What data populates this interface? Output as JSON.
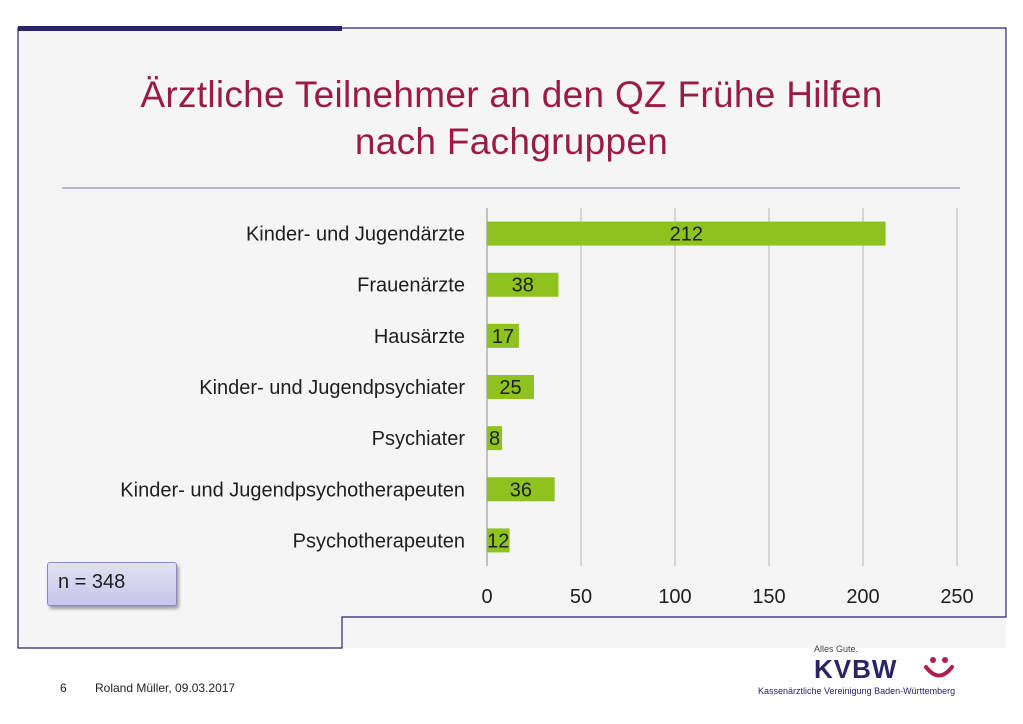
{
  "slide": {
    "title_lines": [
      "Ärztliche Teilnehmer an den QZ Frühe Hilfen",
      "nach Fachgruppen"
    ],
    "note": "n = 348",
    "page_number": "6",
    "footer": "Roland Müller, 09.03.2017",
    "logo": {
      "tagline": "Alles Gute.",
      "wordmark": "KVBW",
      "subtitle": "Kassenärztliche Vereinigung Baden-Württemberg"
    },
    "colors": {
      "title": "#9b1b45",
      "bar": "#8dc21f",
      "accent": "#2a2469"
    }
  },
  "chart_data": {
    "type": "bar",
    "orientation": "horizontal",
    "categories": [
      "Kinder- und Jugendärzte",
      "Frauenärzte",
      "Hausärzte",
      "Kinder- und Jugendpsychiater",
      "Psychiater",
      "Kinder- und Jugendpsychotherapeuten",
      "Psychotherapeuten"
    ],
    "values": [
      212,
      38,
      17,
      25,
      8,
      36,
      12
    ],
    "xlim": [
      0,
      250
    ],
    "xticks": [
      0,
      50,
      100,
      150,
      200,
      250
    ],
    "grid": true,
    "data_labels": true
  }
}
